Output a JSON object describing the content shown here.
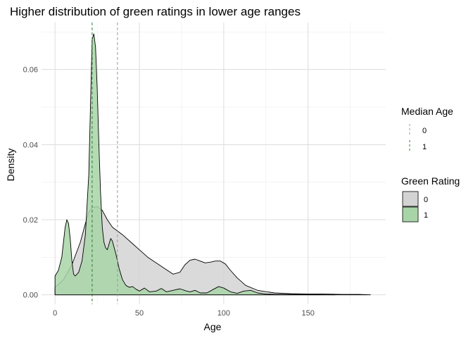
{
  "chart_data": {
    "type": "area",
    "title": "Higher distribution of green ratings in lower age ranges",
    "xlabel": "Age",
    "ylabel": "Density",
    "xlim": [
      -8,
      196
    ],
    "ylim": [
      -0.0025,
      0.0725
    ],
    "x_ticks": [
      0,
      50,
      100,
      150
    ],
    "x_tick_labels": [
      "0",
      "50",
      "100",
      "150"
    ],
    "y_ticks": [
      0.0,
      0.02,
      0.04,
      0.06
    ],
    "y_tick_labels": [
      "0.00",
      "0.02",
      "0.04",
      "0.06"
    ],
    "grid": true,
    "legend_placement": "right",
    "series": [
      {
        "name": "0",
        "color": "#d3d3d3",
        "points": [
          [
            0,
            0.002
          ],
          [
            5,
            0.004
          ],
          [
            10,
            0.008
          ],
          [
            15,
            0.014
          ],
          [
            18,
            0.019
          ],
          [
            20,
            0.022
          ],
          [
            22,
            0.0232
          ],
          [
            25,
            0.0235
          ],
          [
            28,
            0.0225
          ],
          [
            31,
            0.02
          ],
          [
            34,
            0.018
          ],
          [
            37,
            0.017
          ],
          [
            40,
            0.016
          ],
          [
            45,
            0.014
          ],
          [
            50,
            0.012
          ],
          [
            55,
            0.01
          ],
          [
            60,
            0.0085
          ],
          [
            65,
            0.007
          ],
          [
            70,
            0.0055
          ],
          [
            74,
            0.006
          ],
          [
            77,
            0.008
          ],
          [
            80,
            0.0092
          ],
          [
            83,
            0.0095
          ],
          [
            86,
            0.009
          ],
          [
            89,
            0.0085
          ],
          [
            92,
            0.0087
          ],
          [
            95,
            0.009
          ],
          [
            98,
            0.009
          ],
          [
            101,
            0.0082
          ],
          [
            104,
            0.0065
          ],
          [
            108,
            0.0045
          ],
          [
            113,
            0.0025
          ],
          [
            120,
            0.0012
          ],
          [
            130,
            0.0005
          ],
          [
            140,
            0.0003
          ],
          [
            150,
            0.0002
          ],
          [
            160,
            0.0002
          ],
          [
            170,
            0.0001
          ],
          [
            180,
            0.0001
          ],
          [
            187,
            0.0
          ]
        ]
      },
      {
        "name": "1",
        "color": "#a8d5a8",
        "points": [
          [
            0,
            0.005
          ],
          [
            2,
            0.0065
          ],
          [
            4,
            0.01
          ],
          [
            6,
            0.018
          ],
          [
            7,
            0.02
          ],
          [
            8,
            0.019
          ],
          [
            9,
            0.015
          ],
          [
            10,
            0.009
          ],
          [
            11,
            0.0055
          ],
          [
            12,
            0.005
          ],
          [
            14,
            0.006
          ],
          [
            16,
            0.009
          ],
          [
            18,
            0.016
          ],
          [
            20,
            0.032
          ],
          [
            21,
            0.05
          ],
          [
            22,
            0.068
          ],
          [
            23,
            0.0695
          ],
          [
            24,
            0.066
          ],
          [
            25,
            0.055
          ],
          [
            26,
            0.04
          ],
          [
            27,
            0.027
          ],
          [
            28,
            0.018
          ],
          [
            29,
            0.014
          ],
          [
            30,
            0.0125
          ],
          [
            31,
            0.012
          ],
          [
            32,
            0.0135
          ],
          [
            33,
            0.015
          ],
          [
            34,
            0.0143
          ],
          [
            36,
            0.011
          ],
          [
            38,
            0.007
          ],
          [
            40,
            0.004
          ],
          [
            42,
            0.0025
          ],
          [
            44,
            0.002
          ],
          [
            46,
            0.0022
          ],
          [
            48,
            0.0015
          ],
          [
            50,
            0.001
          ],
          [
            53,
            0.0018
          ],
          [
            56,
            0.0008
          ],
          [
            60,
            0.001
          ],
          [
            63,
            0.0017
          ],
          [
            66,
            0.0008
          ],
          [
            70,
            0.0012
          ],
          [
            74,
            0.0016
          ],
          [
            78,
            0.001
          ],
          [
            80,
            0.0008
          ],
          [
            83,
            0.0012
          ],
          [
            86,
            0.0005
          ],
          [
            90,
            0.0005
          ],
          [
            94,
            0.0015
          ],
          [
            97,
            0.0022
          ],
          [
            100,
            0.0018
          ],
          [
            104,
            0.0008
          ],
          [
            108,
            0.0004
          ],
          [
            112,
            0.001
          ],
          [
            116,
            0.0012
          ],
          [
            120,
            0.0005
          ],
          [
            125,
            0.0002
          ],
          [
            130,
            0.0001
          ],
          [
            140,
            0.0001
          ],
          [
            150,
            0.0001
          ],
          [
            160,
            0.0
          ],
          [
            166,
            0.0
          ]
        ]
      }
    ],
    "median_lines": [
      {
        "name": "0",
        "x": 37,
        "color": "#999999"
      },
      {
        "name": "1",
        "x": 22,
        "color": "#2e7d32"
      }
    ],
    "legend_median": {
      "title": "Median Age",
      "labels": [
        "0",
        "1"
      ]
    },
    "legend_fill": {
      "title": "Green Rating",
      "labels": [
        "0",
        "1"
      ]
    }
  }
}
